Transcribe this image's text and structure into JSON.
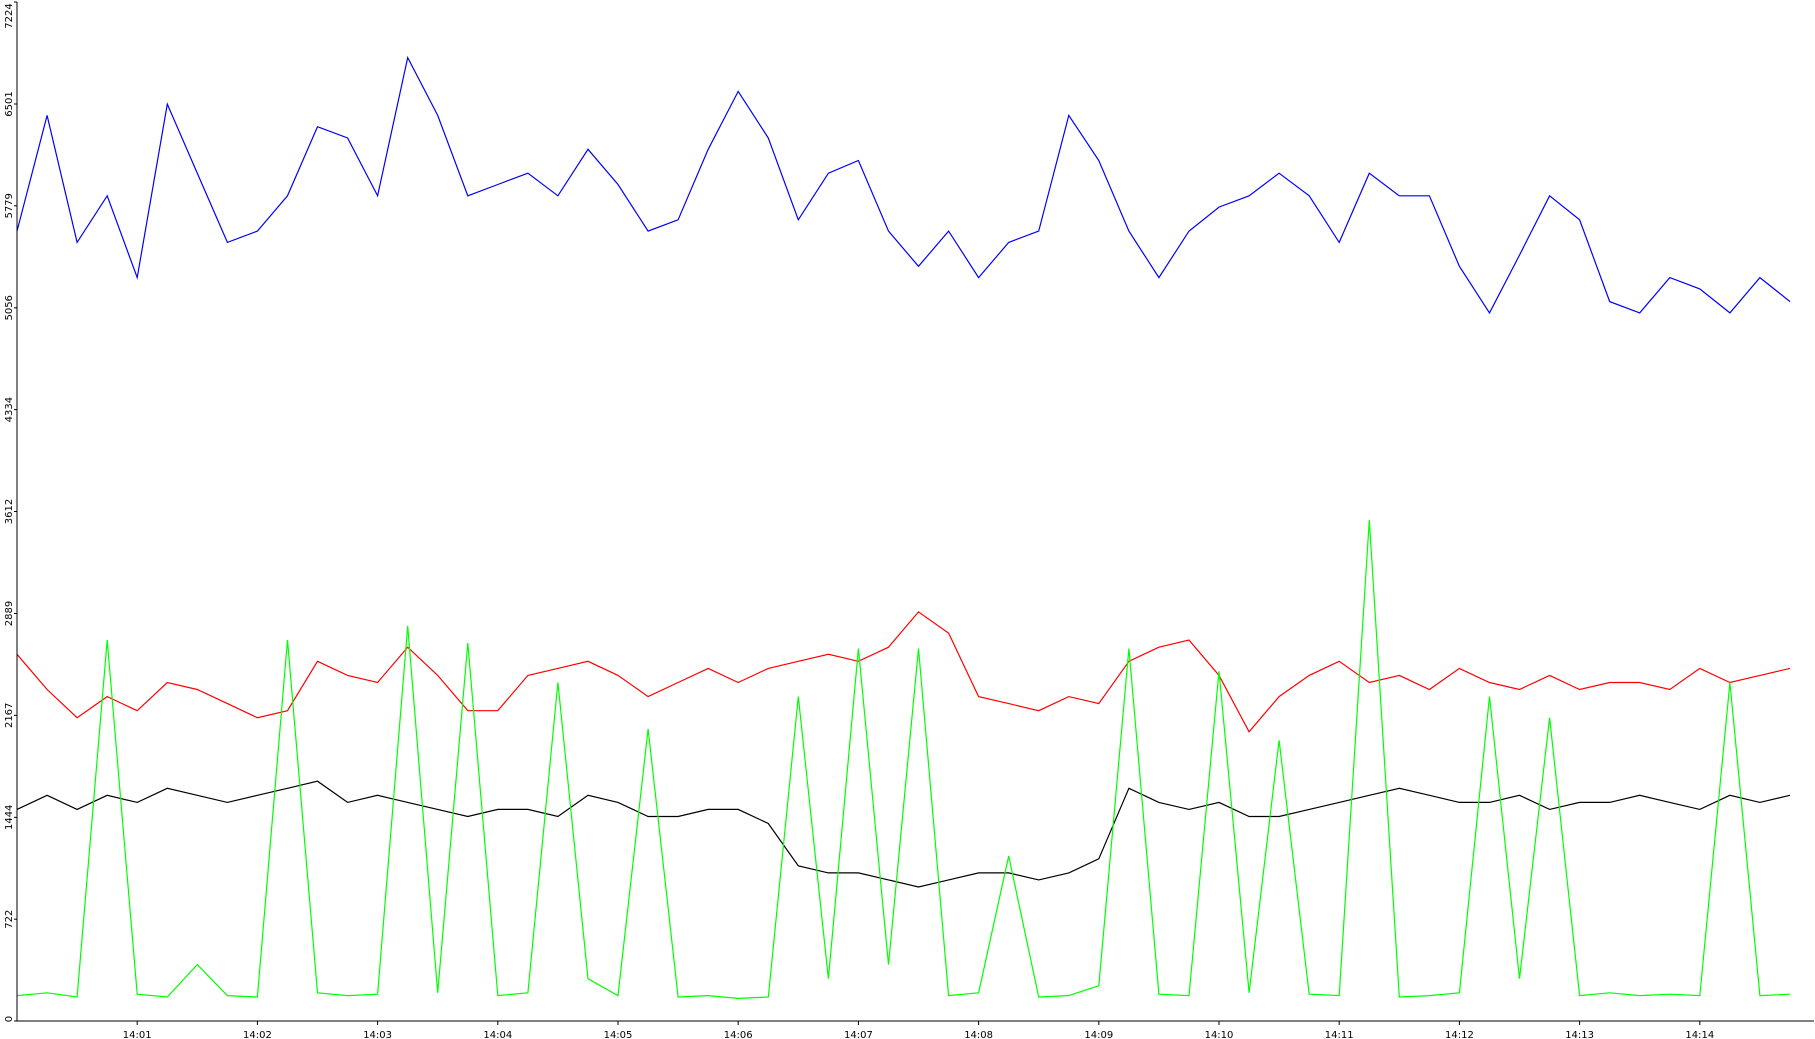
{
  "chart_data": {
    "type": "line",
    "x": [
      0,
      0.25,
      0.5,
      0.75,
      1,
      1.25,
      1.5,
      1.75,
      2,
      2.25,
      2.5,
      2.75,
      3,
      3.25,
      3.5,
      3.75,
      4,
      4.25,
      4.5,
      4.75,
      5,
      5.25,
      5.5,
      5.75,
      6,
      6.25,
      6.5,
      6.75,
      7,
      7.25,
      7.5,
      7.75,
      8,
      8.25,
      8.5,
      8.75,
      9,
      9.25,
      9.5,
      9.75,
      10,
      10.25,
      10.5,
      10.75,
      11,
      11.25,
      11.5,
      11.75,
      12,
      12.25,
      12.5,
      12.75,
      13,
      13.25,
      13.5,
      13.75,
      14,
      14.25,
      14.5,
      14.75
    ],
    "xlim": [
      0,
      14.95
    ],
    "xticks": [
      {
        "value": 1,
        "label": "14:01"
      },
      {
        "value": 2,
        "label": "14:02"
      },
      {
        "value": 3,
        "label": "14:03"
      },
      {
        "value": 4,
        "label": "14:04"
      },
      {
        "value": 5,
        "label": "14:05"
      },
      {
        "value": 6,
        "label": "14:06"
      },
      {
        "value": 7,
        "label": "14:07"
      },
      {
        "value": 8,
        "label": "14:08"
      },
      {
        "value": 9,
        "label": "14:09"
      },
      {
        "value": 10,
        "label": "14:10"
      },
      {
        "value": 11,
        "label": "14:11"
      },
      {
        "value": 12,
        "label": "14:12"
      },
      {
        "value": 13,
        "label": "14:13"
      },
      {
        "value": 14,
        "label": "14:14"
      }
    ],
    "ylim": [
      0,
      7224
    ],
    "yticks": [
      0,
      722,
      1444,
      2167,
      2889,
      3612,
      4334,
      5056,
      5779,
      6501,
      7224
    ],
    "grid": false,
    "series": [
      {
        "color": "#0000ff",
        "values": [
          5600,
          6420,
          5520,
          5850,
          5270,
          6500,
          6010,
          5520,
          5600,
          5850,
          6340,
          6260,
          5850,
          6830,
          6420,
          5850,
          5930,
          6010,
          5850,
          6180,
          5930,
          5600,
          5680,
          6180,
          6590,
          6260,
          5680,
          6010,
          6100,
          5600,
          5350,
          5600,
          5270,
          5520,
          5600,
          6420,
          6100,
          5600,
          5270,
          5600,
          5770,
          5850,
          6010,
          5850,
          5520,
          6010,
          5850,
          5850,
          5350,
          5020,
          5430,
          5850,
          5680,
          5100,
          5020,
          5270,
          5190,
          5020,
          5270,
          5100
        ]
      },
      {
        "color": "#ff0000",
        "values": [
          2600,
          2350,
          2150,
          2300,
          2200,
          2400,
          2350,
          2250,
          2150,
          2200,
          2550,
          2450,
          2400,
          2650,
          2450,
          2200,
          2200,
          2450,
          2500,
          2550,
          2450,
          2300,
          2400,
          2500,
          2400,
          2500,
          2550,
          2600,
          2550,
          2650,
          2900,
          2750,
          2300,
          2250,
          2200,
          2300,
          2250,
          2550,
          2650,
          2700,
          2450,
          2050,
          2300,
          2450,
          2550,
          2400,
          2450,
          2350,
          2500,
          2400,
          2350,
          2450,
          2350,
          2400,
          2400,
          2350,
          2500,
          2400,
          2450,
          2500
        ]
      },
      {
        "color": "#000000",
        "values": [
          1500,
          1600,
          1500,
          1600,
          1550,
          1650,
          1600,
          1550,
          1600,
          1650,
          1700,
          1550,
          1600,
          1550,
          1500,
          1450,
          1500,
          1500,
          1450,
          1600,
          1550,
          1450,
          1450,
          1500,
          1500,
          1400,
          1100,
          1050,
          1050,
          1000,
          950,
          1000,
          1050,
          1050,
          1000,
          1050,
          1150,
          1650,
          1550,
          1500,
          1550,
          1450,
          1450,
          1500,
          1550,
          1600,
          1650,
          1600,
          1550,
          1550,
          1600,
          1500,
          1550,
          1550,
          1600,
          1550,
          1500,
          1600,
          1550,
          1600
        ]
      },
      {
        "color": "#00ff00",
        "values": [
          180,
          200,
          170,
          2700,
          190,
          170,
          400,
          180,
          170,
          2700,
          200,
          180,
          190,
          2800,
          200,
          2680,
          180,
          200,
          2400,
          300,
          180,
          2070,
          170,
          180,
          160,
          170,
          2300,
          300,
          2640,
          400,
          2640,
          180,
          200,
          1170,
          170,
          180,
          250,
          2640,
          190,
          180,
          2480,
          200,
          1990,
          190,
          180,
          3550,
          170,
          180,
          200,
          2300,
          300,
          2150,
          180,
          200,
          180,
          190,
          180,
          2400,
          180,
          190
        ]
      }
    ]
  }
}
